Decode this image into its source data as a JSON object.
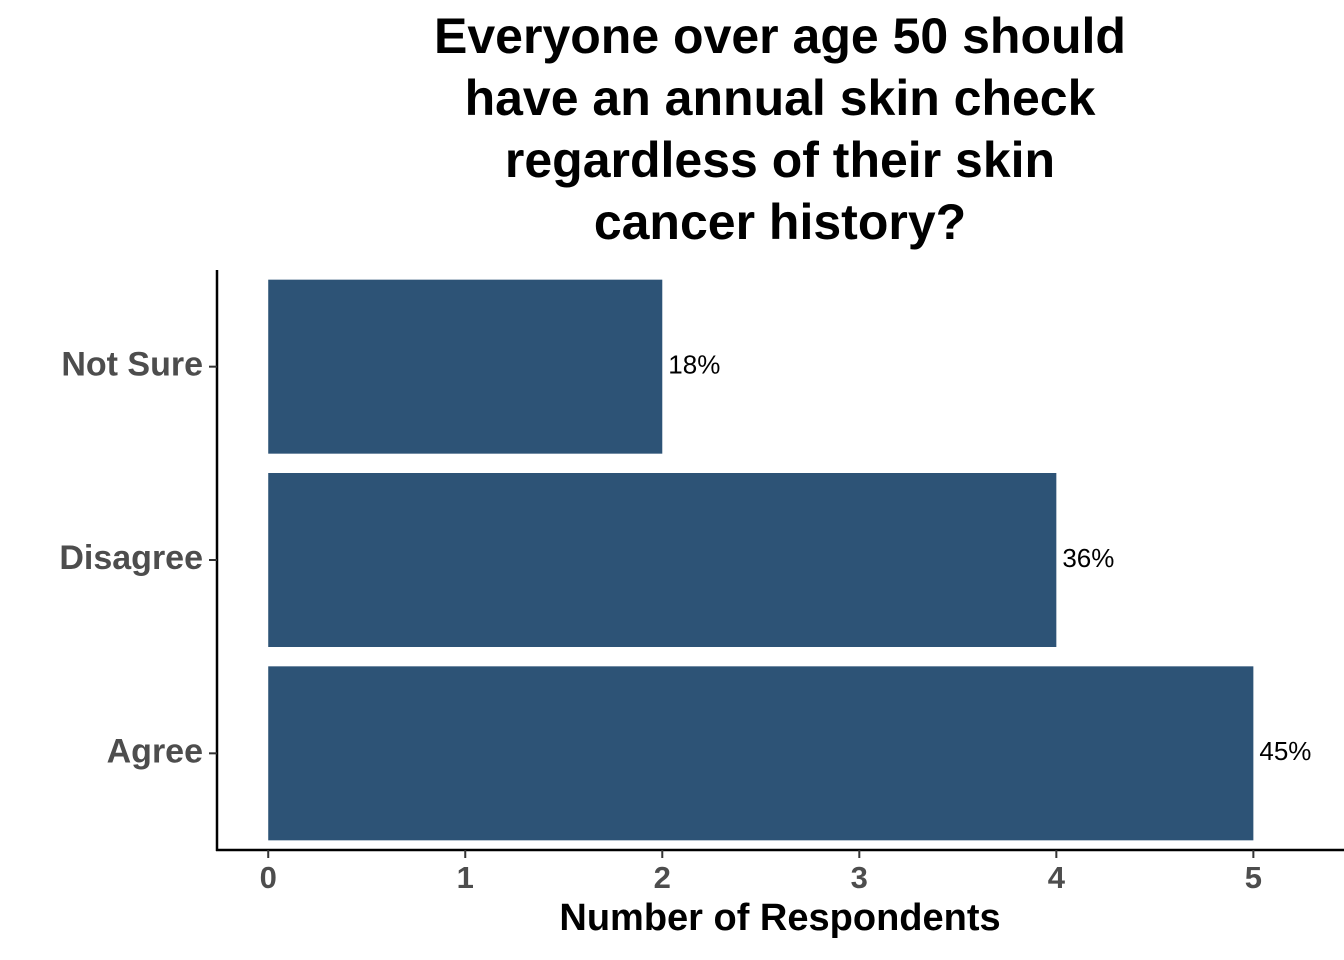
{
  "chart_data": {
    "type": "bar",
    "orientation": "horizontal",
    "title": [
      "Everyone over age 50 should",
      "have an annual skin check",
      "regardless of their skin",
      "cancer history?"
    ],
    "x_label": "Number of Respondents",
    "categories": [
      "Not Sure",
      "Disagree",
      "Agree"
    ],
    "values": [
      2,
      4,
      5
    ],
    "data_labels": [
      "18%",
      "36%",
      "45%"
    ],
    "color": "#2d5376",
    "xlim": [
      -0.26,
      5.46
    ],
    "xticks": [
      0,
      1,
      2,
      3,
      4,
      5
    ],
    "grid": false
  }
}
